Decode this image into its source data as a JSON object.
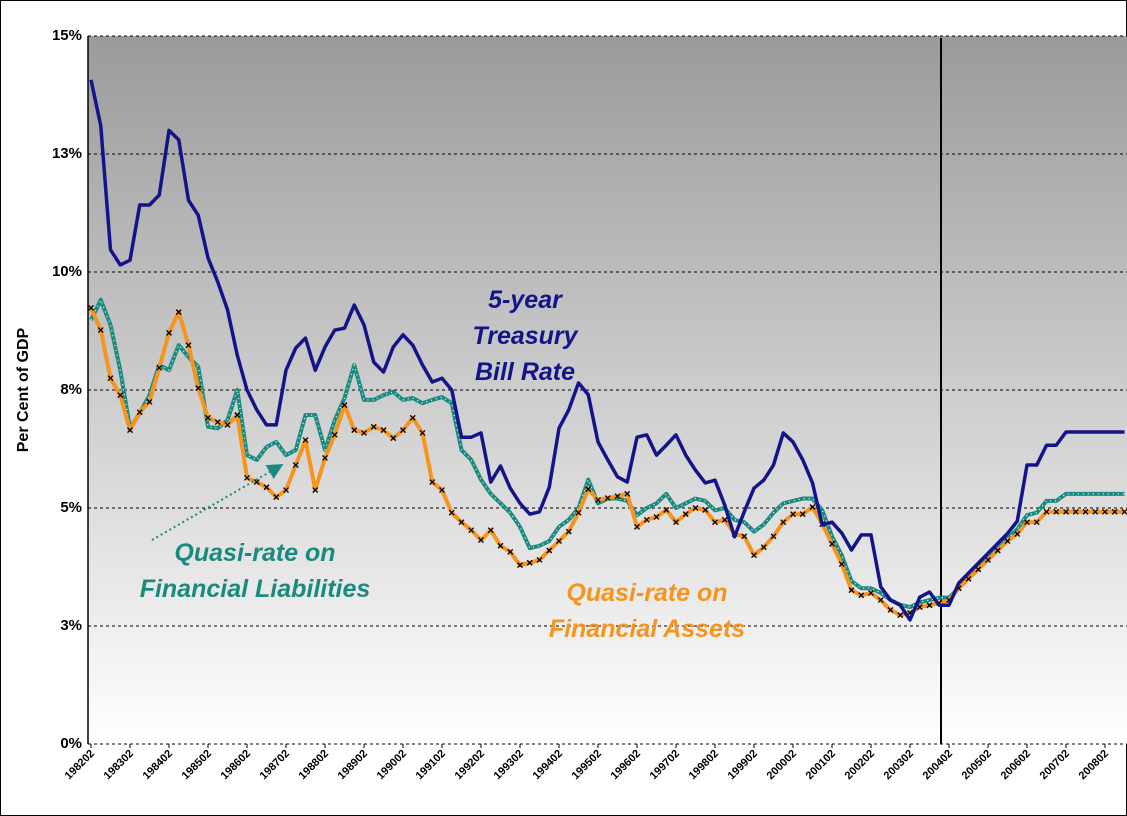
{
  "chart_data": {
    "type": "line",
    "y_label": "Per Cent of GDP",
    "ylim": [
      0,
      15
    ],
    "yticks": [
      {
        "value": 0,
        "label": "0%"
      },
      {
        "value": 2.5,
        "label": "3%"
      },
      {
        "value": 5,
        "label": "5%"
      },
      {
        "value": 7.5,
        "label": "8%"
      },
      {
        "value": 10,
        "label": "10%"
      },
      {
        "value": 12.5,
        "label": "13%"
      },
      {
        "value": 15,
        "label": "15%"
      }
    ],
    "grid": true,
    "categories": [
      "198202",
      null,
      null,
      null,
      "198302",
      null,
      null,
      null,
      "198402",
      null,
      null,
      null,
      "198502",
      null,
      null,
      null,
      "198602",
      null,
      null,
      null,
      "198702",
      null,
      null,
      null,
      "198802",
      null,
      null,
      null,
      "198902",
      null,
      null,
      null,
      "199002",
      null,
      null,
      null,
      "199102",
      null,
      null,
      null,
      "199202",
      null,
      null,
      null,
      "199302",
      null,
      null,
      null,
      "199402",
      null,
      null,
      null,
      "199502",
      null,
      null,
      null,
      "199602",
      null,
      null,
      null,
      "199702",
      null,
      null,
      null,
      "199802",
      null,
      null,
      null,
      "199902",
      null,
      null,
      null,
      "200002",
      null,
      null,
      null,
      "200102",
      null,
      null,
      null,
      "200202",
      null,
      null,
      null,
      "200302",
      null,
      null,
      null,
      "200402",
      null,
      null,
      null,
      "200502",
      null,
      null,
      null,
      "200602",
      null,
      null,
      null,
      "200702",
      null,
      null,
      null,
      "200802",
      null,
      null
    ],
    "series": [
      {
        "label_lines": [
          "5-year",
          "Treasury",
          "Bill Rate"
        ],
        "color": "#14148a",
        "marker": "none",
        "values": [
          14.07,
          13.1,
          10.47,
          10.15,
          10.25,
          11.42,
          11.42,
          11.63,
          13.0,
          12.8,
          11.52,
          11.2,
          10.3,
          9.79,
          9.2,
          8.24,
          7.5,
          7.08,
          6.76,
          6.76,
          7.92,
          8.39,
          8.6,
          7.92,
          8.41,
          8.77,
          8.81,
          9.3,
          8.88,
          8.09,
          7.88,
          8.41,
          8.67,
          8.45,
          8.03,
          7.67,
          7.75,
          7.5,
          6.5,
          6.5,
          6.59,
          5.55,
          5.89,
          5.42,
          5.1,
          4.87,
          4.92,
          5.44,
          6.69,
          7.08,
          7.65,
          7.4,
          6.4,
          6.02,
          5.66,
          5.55,
          6.5,
          6.55,
          6.12,
          6.33,
          6.55,
          6.12,
          5.8,
          5.53,
          5.59,
          5.06,
          4.39,
          4.92,
          5.42,
          5.59,
          5.91,
          6.59,
          6.4,
          6.02,
          5.53,
          4.64,
          4.7,
          4.47,
          4.11,
          4.43,
          4.43,
          3.33,
          3.05,
          2.94,
          2.63,
          3.11,
          3.22,
          2.94,
          2.94,
          3.41,
          3.62,
          3.83,
          4.04,
          4.25,
          4.46,
          4.72,
          5.91,
          5.91,
          6.33,
          6.33,
          6.61,
          6.61,
          6.61,
          6.61,
          6.61,
          6.61,
          6.61
        ]
      },
      {
        "label_lines": [
          "Quasi-rate on",
          "Financial Liabilities"
        ],
        "color": "#1a8a80",
        "marker": "dot",
        "values": [
          8.98,
          9.41,
          8.88,
          7.92,
          6.69,
          7.01,
          7.39,
          8.03,
          7.92,
          8.45,
          8.2,
          7.99,
          6.72,
          6.69,
          6.86,
          7.5,
          6.12,
          6.02,
          6.29,
          6.4,
          6.12,
          6.23,
          6.97,
          6.97,
          6.23,
          6.86,
          7.33,
          8.03,
          7.29,
          7.29,
          7.39,
          7.46,
          7.29,
          7.33,
          7.22,
          7.29,
          7.35,
          7.22,
          6.23,
          6.02,
          5.6,
          5.3,
          5.1,
          4.9,
          4.6,
          4.15,
          4.2,
          4.3,
          4.6,
          4.75,
          5.0,
          5.6,
          5.1,
          5.2,
          5.2,
          5.15,
          4.85,
          5.0,
          5.1,
          5.3,
          5.0,
          5.1,
          5.2,
          5.15,
          4.95,
          5.0,
          4.75,
          4.7,
          4.5,
          4.65,
          4.9,
          5.1,
          5.15,
          5.2,
          5.2,
          4.95,
          4.4,
          4.0,
          3.45,
          3.3,
          3.3,
          3.2,
          3.05,
          2.95,
          2.9,
          3.0,
          3.05,
          3.1,
          3.1,
          3.3,
          3.55,
          3.75,
          3.95,
          4.15,
          4.35,
          4.55,
          4.85,
          4.9,
          5.15,
          5.15,
          5.3,
          5.3,
          5.3,
          5.3,
          5.3,
          5.3,
          5.3
        ]
      },
      {
        "label_lines": [
          "Quasi-rate on",
          "Financial Assets"
        ],
        "color": "#f7941d",
        "marker": "cross",
        "values": [
          9.24,
          8.77,
          7.75,
          7.39,
          6.65,
          7.03,
          7.25,
          7.97,
          8.71,
          9.15,
          8.45,
          7.54,
          6.91,
          6.82,
          6.76,
          6.97,
          5.64,
          5.55,
          5.44,
          5.23,
          5.38,
          5.91,
          6.44,
          5.38,
          6.06,
          6.55,
          7.18,
          6.65,
          6.59,
          6.72,
          6.65,
          6.48,
          6.65,
          6.91,
          6.59,
          5.55,
          5.38,
          4.9,
          4.7,
          4.53,
          4.32,
          4.53,
          4.2,
          4.07,
          3.79,
          3.84,
          3.9,
          4.1,
          4.3,
          4.5,
          4.9,
          5.4,
          5.17,
          5.21,
          5.25,
          5.3,
          4.6,
          4.75,
          4.81,
          4.96,
          4.7,
          4.87,
          5.0,
          4.96,
          4.7,
          4.75,
          4.45,
          4.4,
          4.0,
          4.17,
          4.4,
          4.7,
          4.87,
          4.87,
          5.02,
          4.66,
          4.24,
          3.81,
          3.26,
          3.15,
          3.2,
          3.05,
          2.84,
          2.73,
          2.78,
          2.9,
          2.94,
          2.99,
          3.05,
          3.3,
          3.5,
          3.7,
          3.9,
          4.1,
          4.3,
          4.45,
          4.7,
          4.7,
          4.92,
          4.92,
          4.92,
          4.92,
          4.92,
          4.92,
          4.92,
          4.92,
          4.92
        ]
      }
    ]
  }
}
